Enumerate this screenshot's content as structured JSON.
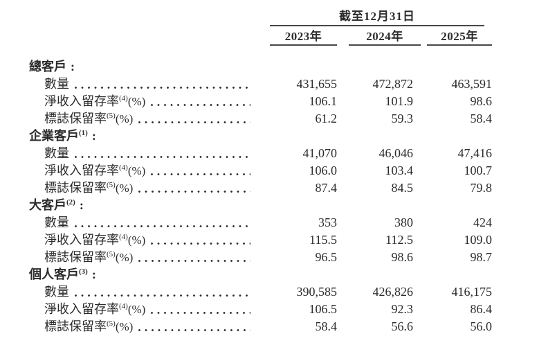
{
  "page": {
    "background_color": "#ffffff",
    "text_color": "#2b2b2b",
    "rule_color": "#474747"
  },
  "table": {
    "period_header": "截至12月31日",
    "columns": [
      "2023年",
      "2024年",
      "2025年"
    ],
    "rows": [
      {
        "type": "section",
        "label": "總客戶",
        "sup": "",
        "colon": ":"
      },
      {
        "type": "data",
        "label": "數量",
        "sup": "",
        "suffix": "",
        "values": [
          "431,655",
          "472,872",
          "463,591"
        ]
      },
      {
        "type": "data",
        "label": "淨收入留存率",
        "sup": "(4)",
        "suffix": "(%)",
        "values": [
          "106.1",
          "101.9",
          "98.6"
        ]
      },
      {
        "type": "data",
        "label": "標誌保留率",
        "sup": "(5)",
        "suffix": "(%)",
        "values": [
          "61.2",
          "59.3",
          "58.4"
        ]
      },
      {
        "type": "section",
        "label": "企業客戶",
        "sup": "(1)",
        "colon": ":"
      },
      {
        "type": "data",
        "label": "數量",
        "sup": "",
        "suffix": "",
        "values": [
          "41,070",
          "46,046",
          "47,416"
        ]
      },
      {
        "type": "data",
        "label": "淨收入留存率",
        "sup": "(4)",
        "suffix": "(%)",
        "values": [
          "106.0",
          "103.4",
          "100.7"
        ]
      },
      {
        "type": "data",
        "label": "標誌保留率",
        "sup": "(5)",
        "suffix": "(%)",
        "values": [
          "87.4",
          "84.5",
          "79.8"
        ]
      },
      {
        "type": "section",
        "label": "大客戶",
        "sup": "(2)",
        "colon": ":"
      },
      {
        "type": "data",
        "label": "數量",
        "sup": "",
        "suffix": "",
        "values": [
          "353",
          "380",
          "424"
        ]
      },
      {
        "type": "data",
        "label": "淨收入留存率",
        "sup": "(4)",
        "suffix": "(%)",
        "values": [
          "115.5",
          "112.5",
          "109.0"
        ]
      },
      {
        "type": "data",
        "label": "標誌保留率",
        "sup": "(5)",
        "suffix": "(%)",
        "values": [
          "96.5",
          "98.6",
          "98.7"
        ]
      },
      {
        "type": "section",
        "label": "個人客戶",
        "sup": "(3)",
        "colon": ":"
      },
      {
        "type": "data",
        "label": "數量",
        "sup": "",
        "suffix": "",
        "values": [
          "390,585",
          "426,826",
          "416,175"
        ]
      },
      {
        "type": "data",
        "label": "淨收入留存率",
        "sup": "(4)",
        "suffix": "(%)",
        "values": [
          "106.5",
          "92.3",
          "86.4"
        ]
      },
      {
        "type": "data",
        "label": "標誌保留率",
        "sup": "(5)",
        "suffix": "(%)",
        "values": [
          "58.4",
          "56.6",
          "56.0"
        ]
      }
    ]
  },
  "chart_data": {
    "type": "table",
    "title": "截至12月31日",
    "columns": [
      "2023年",
      "2024年",
      "2025年"
    ],
    "rows": [
      {
        "group": "總客戶",
        "metric": "數量",
        "values": [
          431655,
          472872,
          463591
        ]
      },
      {
        "group": "總客戶",
        "metric": "淨收入留存率(4)(%)",
        "values": [
          106.1,
          101.9,
          98.6
        ]
      },
      {
        "group": "總客戶",
        "metric": "標誌保留率(5)(%)",
        "values": [
          61.2,
          59.3,
          58.4
        ]
      },
      {
        "group": "企業客戶(1)",
        "metric": "數量",
        "values": [
          41070,
          46046,
          47416
        ]
      },
      {
        "group": "企業客戶(1)",
        "metric": "淨收入留存率(4)(%)",
        "values": [
          106.0,
          103.4,
          100.7
        ]
      },
      {
        "group": "企業客戶(1)",
        "metric": "標誌保留率(5)(%)",
        "values": [
          87.4,
          84.5,
          79.8
        ]
      },
      {
        "group": "大客戶(2)",
        "metric": "數量",
        "values": [
          353,
          380,
          424
        ]
      },
      {
        "group": "大客戶(2)",
        "metric": "淨收入留存率(4)(%)",
        "values": [
          115.5,
          112.5,
          109.0
        ]
      },
      {
        "group": "大客戶(2)",
        "metric": "標誌保留率(5)(%)",
        "values": [
          96.5,
          98.6,
          98.7
        ]
      },
      {
        "group": "個人客戶(3)",
        "metric": "數量",
        "values": [
          390585,
          426826,
          416175
        ]
      },
      {
        "group": "個人客戶(3)",
        "metric": "淨收入留存率(4)(%)",
        "values": [
          106.5,
          92.3,
          86.4
        ]
      },
      {
        "group": "個人客戶(3)",
        "metric": "標誌保留率(5)(%)",
        "values": [
          58.4,
          56.6,
          56.0
        ]
      }
    ]
  }
}
